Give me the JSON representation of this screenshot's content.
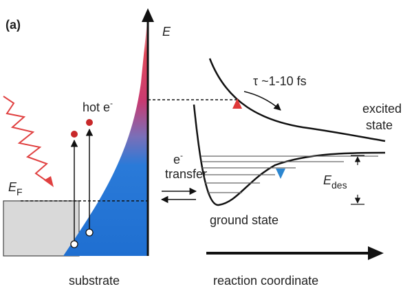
{
  "panel_label": "(a)",
  "energy_axis": "E",
  "hot_electron": {
    "text": "hot e",
    "charge": "-"
  },
  "fermi_level": {
    "symbol": "E",
    "subscript": "F"
  },
  "transfer": {
    "text": "e",
    "charge": "-",
    "label": "transfer"
  },
  "lifetime": "τ ~1-10 fs",
  "excited_state": [
    "excited",
    "state"
  ],
  "ground_state": "ground state",
  "desorption_energy": {
    "symbol": "E",
    "subscript": "des"
  },
  "substrate": "substrate",
  "reaction_coordinate": "reaction coordinate"
}
